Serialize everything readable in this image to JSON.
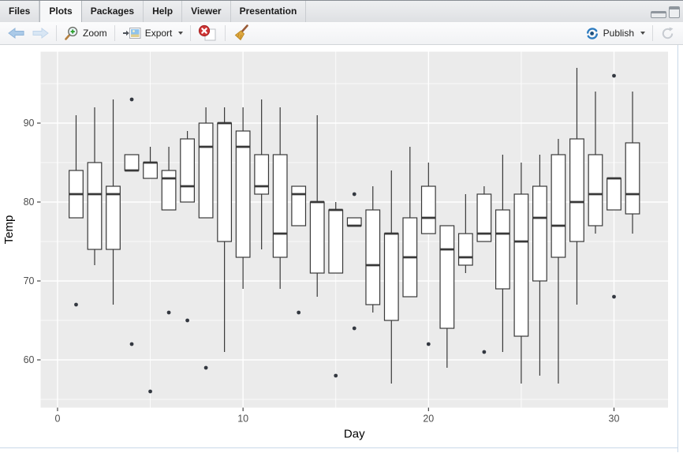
{
  "pane": {
    "tabs": [
      {
        "label": "Files",
        "active": false
      },
      {
        "label": "Plots",
        "active": true
      },
      {
        "label": "Packages",
        "active": false
      },
      {
        "label": "Help",
        "active": false
      },
      {
        "label": "Viewer",
        "active": false
      },
      {
        "label": "Presentation",
        "active": false
      }
    ],
    "toolbar": {
      "zoom_label": "Zoom",
      "export_label": "Export",
      "publish_label": "Publish",
      "icons": [
        "back-arrow-icon",
        "forward-arrow-icon",
        "zoom-magnifier-plus-icon",
        "export-image-icon",
        "remove-plot-red-x-icon",
        "clear-all-broom-icon",
        "publish-swirl-icon",
        "refresh-icon"
      ]
    },
    "window_controls": [
      "minimize-icon",
      "maximize-icon"
    ]
  },
  "chart_data": {
    "type": "boxplot",
    "title": "",
    "xlabel": "Day",
    "ylabel": "Temp",
    "x_ticks": [
      0,
      10,
      20,
      30
    ],
    "y_ticks": [
      60,
      70,
      80,
      90
    ],
    "x_minor_gridlines": [
      5,
      15,
      25
    ],
    "y_minor_gridlines": [
      55,
      65,
      75,
      85,
      95
    ],
    "xlim": [
      -0.9125,
      32.9125
    ],
    "ylim": [
      53.95,
      99.05
    ],
    "legend": "none",
    "grid": "white major and minor gridlines on gray panel",
    "panel_bg": "#EBEBEB",
    "gridline_color": "#FFFFFF",
    "box_fill": "#FFFFFF",
    "box_stroke": "#383838",
    "outlier_color": "#333840",
    "axis_text_color": "#4D4D4D",
    "axis_title_color": "#000000",
    "boxes": [
      {
        "day": 1,
        "values": [
          67,
          78,
          84,
          81,
          91
        ],
        "q1": 78,
        "median": 81,
        "q3": 84,
        "whisker_low": 78,
        "whisker_high": 91,
        "outliers": [
          67
        ]
      },
      {
        "day": 2,
        "values": [
          72,
          74,
          85,
          81,
          92
        ],
        "q1": 74,
        "median": 81,
        "q3": 85,
        "whisker_low": 72,
        "whisker_high": 92,
        "outliers": []
      },
      {
        "day": 3,
        "values": [
          74,
          67,
          81,
          82,
          93
        ],
        "q1": 74,
        "median": 81,
        "q3": 82,
        "whisker_low": 67,
        "whisker_high": 93,
        "outliers": []
      },
      {
        "day": 4,
        "values": [
          62,
          84,
          84,
          86,
          93
        ],
        "q1": 84,
        "median": 84,
        "q3": 86,
        "whisker_low": 84,
        "whisker_high": 86,
        "outliers": [
          62,
          93
        ]
      },
      {
        "day": 5,
        "values": [
          56,
          85,
          83,
          85,
          87
        ],
        "q1": 83,
        "median": 85,
        "q3": 85,
        "whisker_low": 83,
        "whisker_high": 87,
        "outliers": [
          56
        ]
      },
      {
        "day": 6,
        "values": [
          66,
          79,
          83,
          84,
          87
        ],
        "q1": 79,
        "median": 83,
        "q3": 84,
        "whisker_low": 79,
        "whisker_high": 87,
        "outliers": [
          66
        ]
      },
      {
        "day": 7,
        "values": [
          65,
          82,
          88,
          89,
          80
        ],
        "q1": 80,
        "median": 82,
        "q3": 88,
        "whisker_low": 80,
        "whisker_high": 89,
        "outliers": [
          65
        ]
      },
      {
        "day": 8,
        "values": [
          59,
          87,
          92,
          90,
          78
        ],
        "q1": 78,
        "median": 87,
        "q3": 90,
        "whisker_low": 78,
        "whisker_high": 92,
        "outliers": [
          59
        ]
      },
      {
        "day": 9,
        "values": [
          61,
          90,
          92,
          90,
          75
        ],
        "q1": 75,
        "median": 90,
        "q3": 90,
        "whisker_low": 61,
        "whisker_high": 92,
        "outliers": []
      },
      {
        "day": 10,
        "values": [
          69,
          87,
          89,
          92,
          73
        ],
        "q1": 73,
        "median": 87,
        "q3": 89,
        "whisker_low": 69,
        "whisker_high": 92,
        "outliers": []
      },
      {
        "day": 11,
        "values": [
          74,
          93,
          82,
          86,
          81
        ],
        "q1": 81,
        "median": 82,
        "q3": 86,
        "whisker_low": 74,
        "whisker_high": 93,
        "outliers": []
      },
      {
        "day": 12,
        "values": [
          69,
          92,
          73,
          86,
          76
        ],
        "q1": 73,
        "median": 76,
        "q3": 86,
        "whisker_low": 69,
        "whisker_high": 92,
        "outliers": []
      },
      {
        "day": 13,
        "values": [
          66,
          82,
          81,
          82,
          77
        ],
        "q1": 77,
        "median": 81,
        "q3": 82,
        "whisker_low": 77,
        "whisker_high": 82,
        "outliers": [
          66
        ]
      },
      {
        "day": 14,
        "values": [
          68,
          80,
          91,
          80,
          71
        ],
        "q1": 71,
        "median": 80,
        "q3": 80,
        "whisker_low": 68,
        "whisker_high": 91,
        "outliers": []
      },
      {
        "day": 15,
        "values": [
          58,
          79,
          80,
          79,
          71
        ],
        "q1": 71,
        "median": 79,
        "q3": 79,
        "whisker_low": 71,
        "whisker_high": 80,
        "outliers": [
          58
        ]
      },
      {
        "day": 16,
        "values": [
          64,
          77,
          81,
          77,
          78
        ],
        "q1": 77,
        "median": 77,
        "q3": 78,
        "whisker_low": 77,
        "whisker_high": 78,
        "outliers": [
          64,
          81
        ]
      },
      {
        "day": 17,
        "values": [
          66,
          72,
          82,
          79,
          67
        ],
        "q1": 67,
        "median": 72,
        "q3": 79,
        "whisker_low": 66,
        "whisker_high": 82,
        "outliers": []
      },
      {
        "day": 18,
        "values": [
          57,
          65,
          84,
          76,
          76
        ],
        "q1": 65,
        "median": 76,
        "q3": 76,
        "whisker_low": 57,
        "whisker_high": 84,
        "outliers": []
      },
      {
        "day": 19,
        "values": [
          68,
          73,
          87,
          78,
          68
        ],
        "q1": 68,
        "median": 73,
        "q3": 78,
        "whisker_low": 68,
        "whisker_high": 87,
        "outliers": []
      },
      {
        "day": 20,
        "values": [
          62,
          76,
          85,
          78,
          82
        ],
        "q1": 76,
        "median": 78,
        "q3": 82,
        "whisker_low": 76,
        "whisker_high": 85,
        "outliers": [
          62
        ]
      },
      {
        "day": 21,
        "values": [
          59,
          77,
          74,
          77,
          64
        ],
        "q1": 64,
        "median": 74,
        "q3": 77,
        "whisker_low": 59,
        "whisker_high": 77,
        "outliers": []
      },
      {
        "day": 22,
        "values": [
          73,
          76,
          81,
          72,
          71
        ],
        "q1": 72,
        "median": 73,
        "q3": 76,
        "whisker_low": 71,
        "whisker_high": 81,
        "outliers": []
      },
      {
        "day": 23,
        "values": [
          61,
          76,
          82,
          75,
          81
        ],
        "q1": 75,
        "median": 76,
        "q3": 81,
        "whisker_low": 75,
        "whisker_high": 82,
        "outliers": [
          61
        ]
      },
      {
        "day": 24,
        "values": [
          61,
          76,
          86,
          79,
          69
        ],
        "q1": 69,
        "median": 76,
        "q3": 79,
        "whisker_low": 61,
        "whisker_high": 86,
        "outliers": []
      },
      {
        "day": 25,
        "values": [
          57,
          75,
          85,
          81,
          63
        ],
        "q1": 63,
        "median": 75,
        "q3": 81,
        "whisker_low": 57,
        "whisker_high": 85,
        "outliers": []
      },
      {
        "day": 26,
        "values": [
          58,
          78,
          82,
          86,
          70
        ],
        "q1": 70,
        "median": 78,
        "q3": 82,
        "whisker_low": 58,
        "whisker_high": 86,
        "outliers": []
      },
      {
        "day": 27,
        "values": [
          57,
          73,
          86,
          88,
          77
        ],
        "q1": 73,
        "median": 77,
        "q3": 86,
        "whisker_low": 57,
        "whisker_high": 88,
        "outliers": []
      },
      {
        "day": 28,
        "values": [
          67,
          80,
          88,
          97,
          75
        ],
        "q1": 75,
        "median": 80,
        "q3": 88,
        "whisker_low": 67,
        "whisker_high": 97,
        "outliers": []
      },
      {
        "day": 29,
        "values": [
          81,
          77,
          86,
          94,
          76
        ],
        "q1": 77,
        "median": 81,
        "q3": 86,
        "whisker_low": 76,
        "whisker_high": 94,
        "outliers": []
      },
      {
        "day": 30,
        "values": [
          79,
          83,
          83,
          96,
          68
        ],
        "q1": 79,
        "median": 83,
        "q3": 83,
        "whisker_low": 79,
        "whisker_high": 83,
        "outliers": [
          68,
          96
        ]
      },
      {
        "day": 31,
        "values": [
          76,
          81,
          94
        ],
        "q1": 78.5,
        "median": 81,
        "q3": 87.5,
        "whisker_low": 76,
        "whisker_high": 94,
        "outliers": []
      }
    ]
  }
}
